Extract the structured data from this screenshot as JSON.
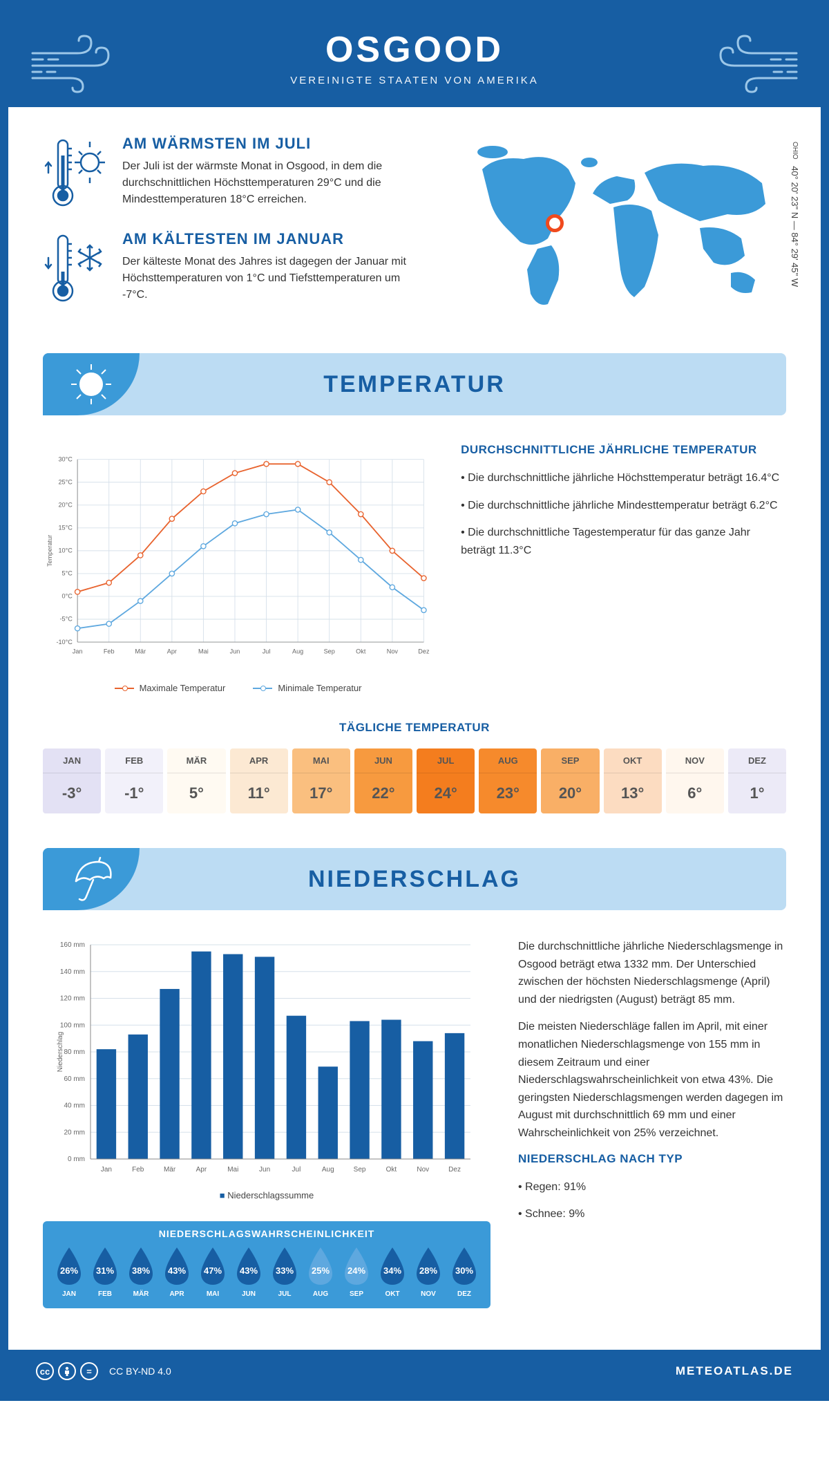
{
  "header": {
    "title": "OSGOOD",
    "subtitle": "VEREINIGTE STAATEN VON AMERIKA"
  },
  "facts": {
    "warm": {
      "title": "AM WÄRMSTEN IM JULI",
      "text": "Der Juli ist der wärmste Monat in Osgood, in dem die durchschnittlichen Höchsttemperaturen 29°C und die Mindesttemperaturen 18°C erreichen."
    },
    "cold": {
      "title": "AM KÄLTESTEN IM JANUAR",
      "text": "Der kälteste Monat des Jahres ist dagegen der Januar mit Höchsttemperaturen von 1°C und Tiefsttemperaturen um -7°C."
    }
  },
  "map": {
    "region": "OHIO",
    "coords": "40° 20' 23\" N — 84° 29' 45\" W"
  },
  "sections": {
    "temperature": "TEMPERATUR",
    "precip": "NIEDERSCHLAG"
  },
  "temp_chart": {
    "type": "line",
    "months": [
      "Jan",
      "Feb",
      "Mär",
      "Apr",
      "Mai",
      "Jun",
      "Jul",
      "Aug",
      "Sep",
      "Okt",
      "Nov",
      "Dez"
    ],
    "max": [
      1,
      3,
      9,
      17,
      23,
      27,
      29,
      29,
      25,
      18,
      10,
      4
    ],
    "min": [
      -7,
      -6,
      -1,
      5,
      11,
      16,
      18,
      19,
      14,
      8,
      2,
      -3
    ],
    "ylim": [
      -10,
      30
    ],
    "ytick_step": 5,
    "max_color": "#e8632e",
    "min_color": "#5ea8df",
    "grid_color": "#d6e0ea",
    "axis_color": "#888",
    "background_color": "#ffffff",
    "y_label": "Temperatur",
    "y_label_fontsize": 10,
    "tick_fontsize": 10,
    "line_width": 2,
    "marker_size": 4,
    "legend": {
      "max": "Maximale Temperatur",
      "min": "Minimale Temperatur"
    }
  },
  "temp_info": {
    "title": "DURCHSCHNITTLICHE JÄHRLICHE TEMPERATUR",
    "bullets": [
      "Die durchschnittliche jährliche Höchsttemperatur beträgt 16.4°C",
      "Die durchschnittliche jährliche Mindesttemperatur beträgt 6.2°C",
      "Die durchschnittliche Tagestemperatur für das ganze Jahr beträgt 11.3°C"
    ]
  },
  "daily_temp": {
    "title": "TÄGLICHE TEMPERATUR",
    "months": [
      "JAN",
      "FEB",
      "MÄR",
      "APR",
      "MAI",
      "JUN",
      "JUL",
      "AUG",
      "SEP",
      "OKT",
      "NOV",
      "DEZ"
    ],
    "values": [
      "-3°",
      "-1°",
      "5°",
      "11°",
      "17°",
      "22°",
      "24°",
      "23°",
      "20°",
      "13°",
      "6°",
      "1°"
    ],
    "colors": [
      "#e3e1f4",
      "#f2f1fa",
      "#fffaf2",
      "#fce9d3",
      "#fabf7f",
      "#f79a3f",
      "#f47d1e",
      "#f68a2c",
      "#f9af66",
      "#fcdcc1",
      "#fff7ee",
      "#eceaf7"
    ]
  },
  "precip_chart": {
    "type": "bar",
    "months": [
      "Jan",
      "Feb",
      "Mär",
      "Apr",
      "Mai",
      "Jun",
      "Jul",
      "Aug",
      "Sep",
      "Okt",
      "Nov",
      "Dez"
    ],
    "values": [
      82,
      93,
      127,
      155,
      153,
      151,
      107,
      69,
      103,
      104,
      88,
      94
    ],
    "ylim": [
      0,
      160
    ],
    "ytick_step": 20,
    "bar_color": "#175ea3",
    "grid_color": "#d6e0ea",
    "axis_color": "#888",
    "background_color": "#ffffff",
    "y_label": "Niederschlag",
    "y_label_fontsize": 10,
    "tick_fontsize": 10,
    "bar_width": 0.62,
    "legend": "Niederschlagssumme"
  },
  "precip_info": {
    "para1": "Die durchschnittliche jährliche Niederschlagsmenge in Osgood beträgt etwa 1332 mm. Der Unterschied zwischen der höchsten Niederschlagsmenge (April) und der niedrigsten (August) beträgt 85 mm.",
    "para2": "Die meisten Niederschläge fallen im April, mit einer monatlichen Niederschlagsmenge von 155 mm in diesem Zeitraum und einer Niederschlagswahrscheinlichkeit von etwa 43%. Die geringsten Niederschlagsmengen werden dagegen im August mit durchschnittlich 69 mm und einer Wahrscheinlichkeit von 25% verzeichnet.",
    "type_title": "NIEDERSCHLAG NACH TYP",
    "types": [
      "Regen: 91%",
      "Schnee: 9%"
    ]
  },
  "prob": {
    "title": "NIEDERSCHLAGSWAHRSCHEINLICHKEIT",
    "months": [
      "JAN",
      "FEB",
      "MÄR",
      "APR",
      "MAI",
      "JUN",
      "JUL",
      "AUG",
      "SEP",
      "OKT",
      "NOV",
      "DEZ"
    ],
    "values": [
      "26%",
      "31%",
      "38%",
      "43%",
      "47%",
      "43%",
      "33%",
      "25%",
      "24%",
      "34%",
      "28%",
      "30%"
    ],
    "colors": [
      "#175ea3",
      "#175ea3",
      "#175ea3",
      "#175ea3",
      "#175ea3",
      "#175ea3",
      "#175ea3",
      "#5ea8df",
      "#5ea8df",
      "#175ea3",
      "#175ea3",
      "#175ea3"
    ]
  },
  "footer": {
    "license": "CC BY-ND 4.0",
    "site": "METEOATLAS.DE"
  }
}
